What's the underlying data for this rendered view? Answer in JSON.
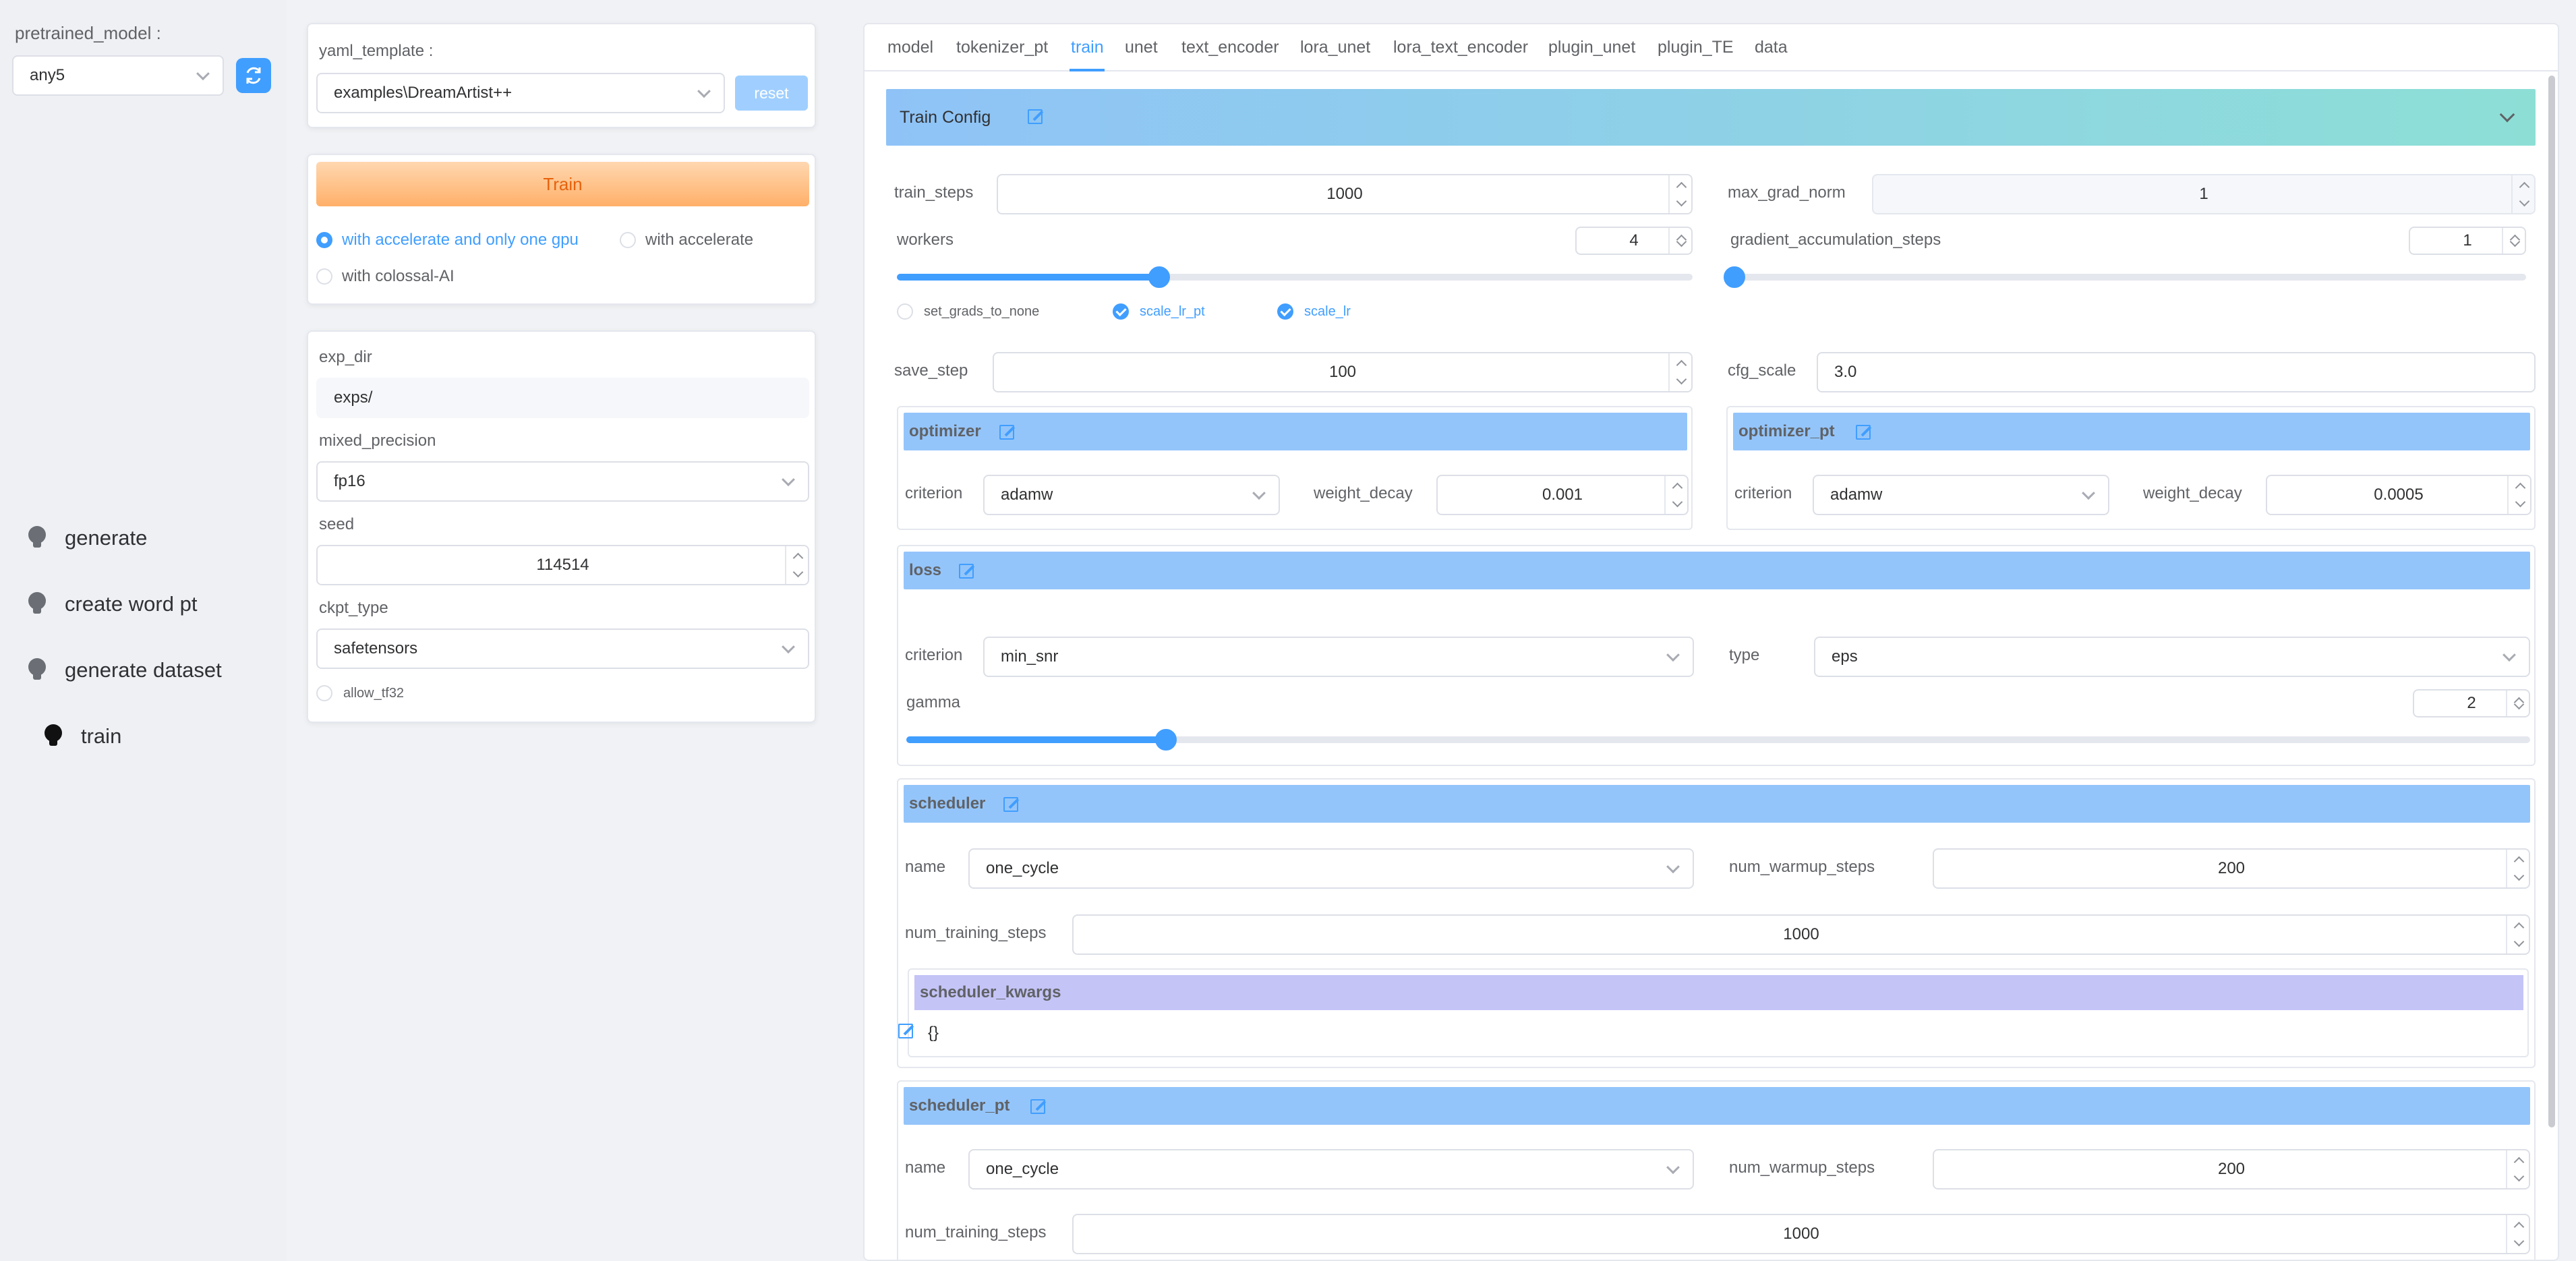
{
  "sidebar": {
    "pretrained_label": "pretrained_model :",
    "pretrained_value": "any5",
    "nav": [
      {
        "label": "generate"
      },
      {
        "label": "create word pt"
      },
      {
        "label": "generate dataset"
      },
      {
        "label": "train"
      }
    ]
  },
  "template": {
    "label": "yaml_template :",
    "value": "examples\\DreamArtist++",
    "reset": "reset"
  },
  "train_card": {
    "button": "Train",
    "opt1": "with accelerate and only one gpu",
    "opt2": "with accelerate",
    "opt3": "with colossal-AI",
    "selected": "with accelerate and only one gpu"
  },
  "exp_card": {
    "exp_dir_label": "exp_dir",
    "exp_dir_value": "exps/",
    "mixed_precision_label": "mixed_precision",
    "mixed_precision_value": "fp16",
    "seed_label": "seed",
    "seed_value": "114514",
    "ckpt_type_label": "ckpt_type",
    "ckpt_type_value": "safetensors",
    "allow_tf32_label": "allow_tf32"
  },
  "tabs": [
    "model",
    "tokenizer_pt",
    "train",
    "unet",
    "text_encoder",
    "lora_unet",
    "lora_text_encoder",
    "plugin_unet",
    "plugin_TE",
    "data"
  ],
  "active_tab": "train",
  "train_config": {
    "title": "Train Config",
    "train_steps_label": "train_steps",
    "train_steps": "1000",
    "max_grad_norm_label": "max_grad_norm",
    "max_grad_norm": "1",
    "workers_label": "workers",
    "workers": "4",
    "workers_fraction": 0.33,
    "grad_accum_label": "gradient_accumulation_steps",
    "grad_accum": "1",
    "grad_accum_fraction": 0.0,
    "set_grads_to_none": "set_grads_to_none",
    "scale_lr_pt": "scale_lr_pt",
    "scale_lr": "scale_lr",
    "save_step_label": "save_step",
    "save_step": "100",
    "cfg_scale_label": "cfg_scale",
    "cfg_scale": "3.0"
  },
  "optimizer": {
    "title": "optimizer",
    "criterion_label": "criterion",
    "criterion": "adamw",
    "weight_decay_label": "weight_decay",
    "weight_decay": "0.001"
  },
  "optimizer_pt": {
    "title": "optimizer_pt",
    "criterion_label": "criterion",
    "criterion": "adamw",
    "weight_decay_label": "weight_decay",
    "weight_decay": "0.0005"
  },
  "loss": {
    "title": "loss",
    "criterion_label": "criterion",
    "criterion": "min_snr",
    "type_label": "type",
    "type": "eps",
    "gamma_label": "gamma",
    "gamma": "2",
    "gamma_fraction": 0.16
  },
  "scheduler": {
    "title": "scheduler",
    "name_label": "name",
    "name": "one_cycle",
    "warmup_label": "num_warmup_steps",
    "warmup": "200",
    "training_steps_label": "num_training_steps",
    "training_steps": "1000",
    "kwargs_title": "scheduler_kwargs",
    "kwargs_value": "{}"
  },
  "scheduler_pt": {
    "title": "scheduler_pt",
    "name_label": "name",
    "name": "one_cycle",
    "warmup_label": "num_warmup_steps",
    "warmup": "200",
    "training_steps_label": "num_training_steps",
    "training_steps": "1000"
  }
}
